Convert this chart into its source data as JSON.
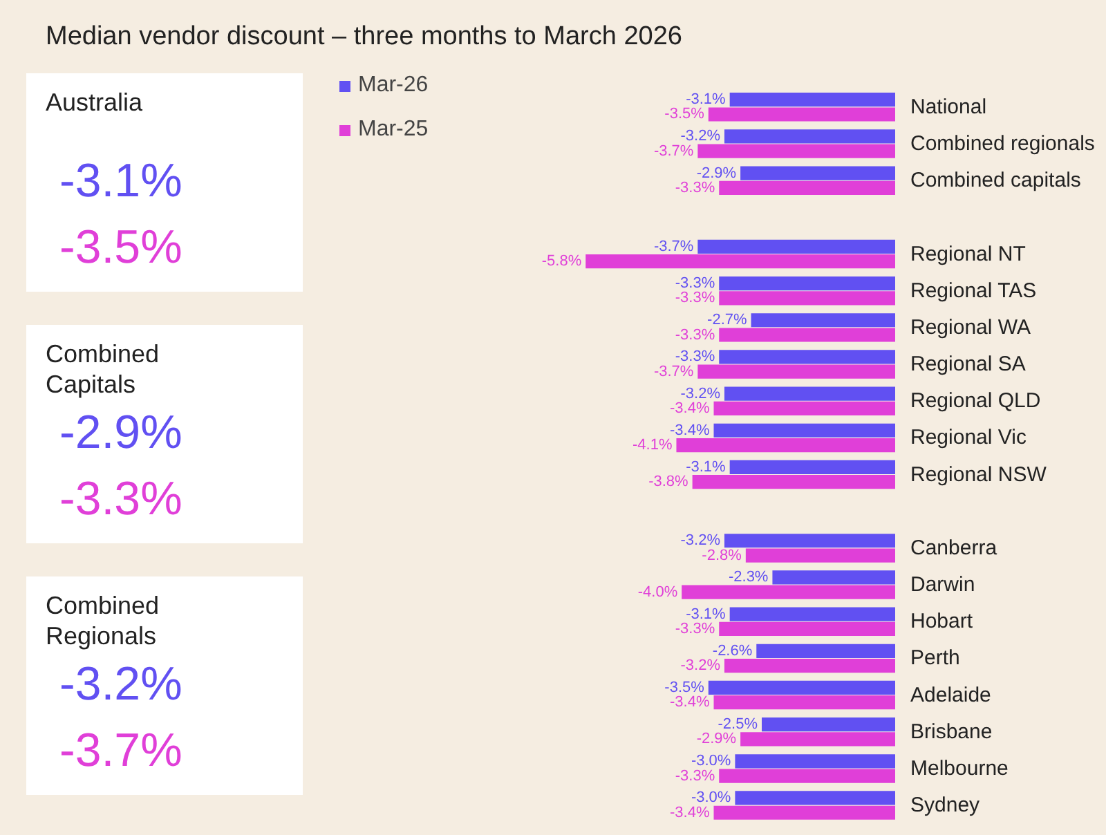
{
  "chart_data": {
    "type": "bar",
    "orientation": "horizontal",
    "title": "Median vendor discount – three months to March 2026",
    "categories": [
      "National",
      "Combined regionals",
      "Combined capitals",
      null,
      "Regional NT",
      "Regional TAS",
      "Regional WA",
      "Regional SA",
      "Regional QLD",
      "Regional Vic",
      "Regional NSW",
      null,
      "Canberra",
      "Darwin",
      "Hobart",
      "Perth",
      "Adelaide",
      "Brisbane",
      "Melbourne",
      "Sydney"
    ],
    "series": [
      {
        "name": "Mar-26",
        "color": "#6150f2",
        "values": [
          -3.1,
          -3.2,
          -2.9,
          null,
          -3.7,
          -3.3,
          -2.7,
          -3.3,
          -3.2,
          -3.4,
          -3.1,
          null,
          -3.2,
          -2.3,
          -3.1,
          -2.6,
          -3.5,
          -2.5,
          -3.0,
          -3.0
        ],
        "value_labels": [
          "-3.1%",
          "-3.2%",
          "-2.9%",
          null,
          "-3.7%",
          "-3.3%",
          "-2.7%",
          "-3.3%",
          "-3.2%",
          "-3.4%",
          "-3.1%",
          null,
          "-3.2%",
          "-2.3%",
          "-3.1%",
          "-2.6%",
          "-3.5%",
          "-2.5%",
          "-3.0%",
          "-3.0%"
        ]
      },
      {
        "name": "Mar-25",
        "color": "#e03fd8",
        "values": [
          -3.5,
          -3.7,
          -3.3,
          null,
          -5.8,
          -3.3,
          -3.3,
          -3.7,
          -3.4,
          -4.1,
          -3.8,
          null,
          -2.8,
          -4.0,
          -3.3,
          -3.2,
          -3.4,
          -2.9,
          -3.3,
          -3.4
        ],
        "value_labels": [
          "-3.5%",
          "-3.7%",
          "-3.3%",
          null,
          "-5.8%",
          "-3.3%",
          "-3.3%",
          "-3.7%",
          "-3.4%",
          "-4.1%",
          "-3.8%",
          null,
          "-2.8%",
          "-4.0%",
          "-3.3%",
          "-3.2%",
          "-3.4%",
          "-2.9%",
          "-3.3%",
          "-3.4%"
        ]
      }
    ],
    "annotations": [
      "Australia",
      "-3.1%",
      "-3.5%",
      "Combined Capitals",
      "-2.9%",
      "-3.3%",
      "Combined Regionals",
      "-3.2%",
      "-3.7%"
    ],
    "legend": "top left",
    "tick_labels": "y"
  }
}
